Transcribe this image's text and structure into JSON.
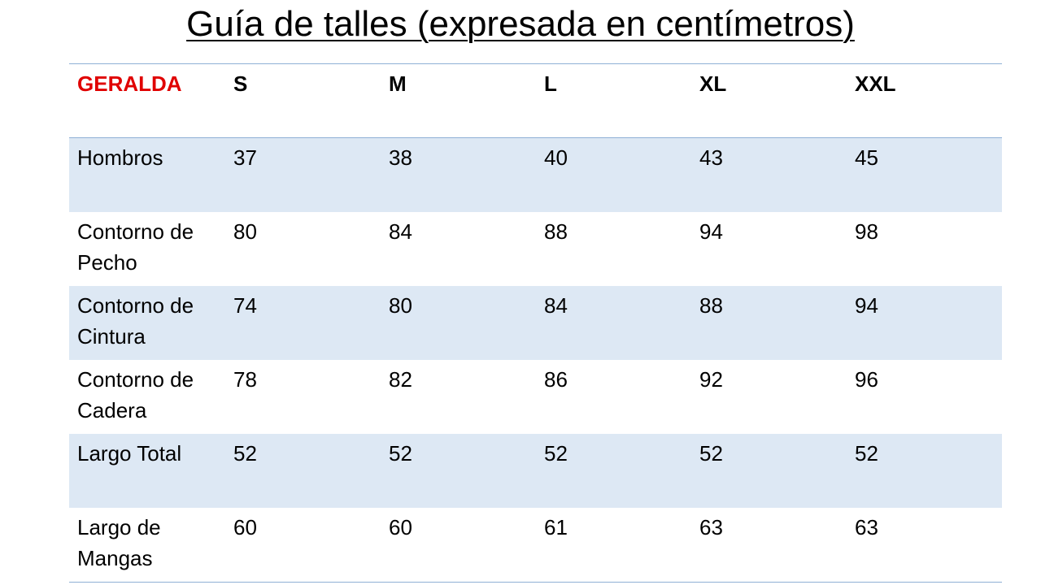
{
  "header": {
    "title": "Guía de talles (expresada en centímetros)"
  },
  "table": {
    "columns": [
      "GERALDA",
      "S",
      "M",
      "L",
      "XL",
      "XXL"
    ],
    "rows": [
      [
        "Hombros",
        37,
        38,
        40,
        43,
        45
      ],
      [
        "Contorno de Pecho",
        80,
        84,
        88,
        94,
        98
      ],
      [
        "Contorno de Cintura",
        74,
        80,
        84,
        88,
        94
      ],
      [
        "Contorno de Cadera",
        78,
        82,
        86,
        92,
        96
      ],
      [
        "Largo Total",
        52,
        52,
        52,
        52,
        52
      ],
      [
        "Largo de Mangas",
        60,
        60,
        61,
        63,
        63
      ]
    ]
  }
}
